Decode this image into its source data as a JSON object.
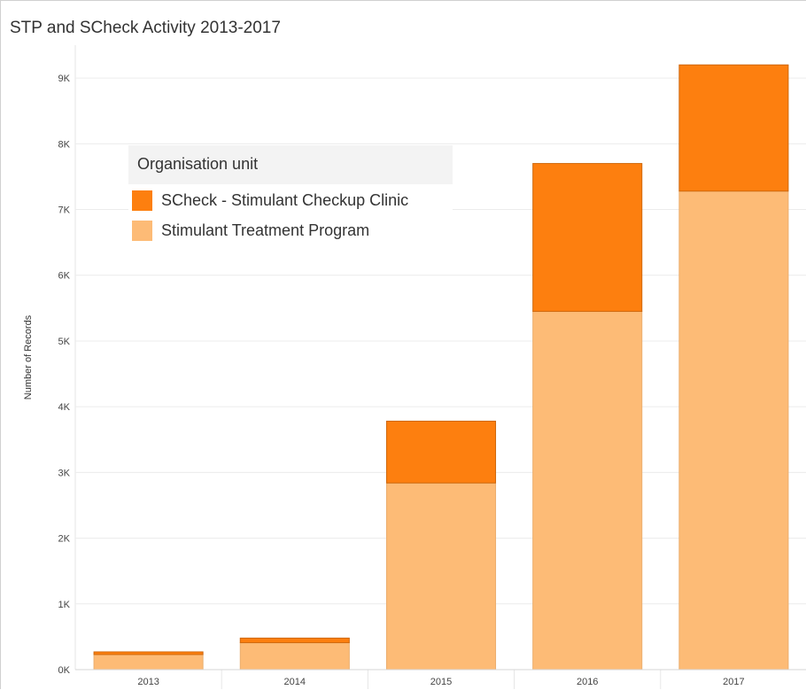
{
  "chart_data": {
    "type": "bar",
    "stacked": true,
    "title": "STP and SCheck Activity 2013-2017",
    "xlabel": "",
    "ylabel": "Number of Records",
    "categories": [
      "2013",
      "2014",
      "2015",
      "2016",
      "2017"
    ],
    "series": [
      {
        "name": "Stimulant Treatment Program",
        "color": "#fdbb76",
        "values": [
          230,
          410,
          2840,
          5450,
          7280
        ]
      },
      {
        "name": "SCheck - Stimulant Checkup Clinic",
        "color": "#fd7f0f",
        "values": [
          40,
          70,
          940,
          2250,
          1920
        ]
      }
    ],
    "ylim": [
      0,
      9500
    ],
    "yticks": [
      0,
      1000,
      2000,
      3000,
      4000,
      5000,
      6000,
      7000,
      8000,
      9000
    ],
    "ytick_labels": [
      "0K",
      "1K",
      "2K",
      "3K",
      "4K",
      "5K",
      "6K",
      "7K",
      "8K",
      "9K"
    ],
    "grid": true,
    "legend": {
      "title": "Organisation unit",
      "placement": "top-left",
      "entries": [
        {
          "name": "SCheck - Stimulant Checkup Clinic",
          "color": "#fd7f0f"
        },
        {
          "name": "Stimulant Treatment Program",
          "color": "#fdbb76"
        }
      ]
    }
  }
}
